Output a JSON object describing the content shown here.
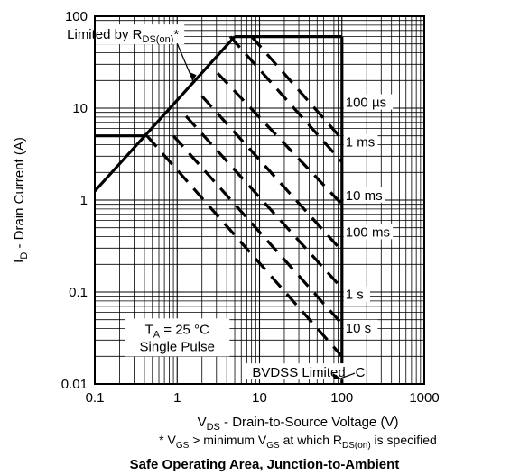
{
  "caption": "Safe Operating Area, Junction-to-Ambient",
  "footnote": {
    "pre": "* V",
    "sub1": "GS",
    "mid": " > minimum V",
    "sub2": "GS",
    "mid2": " at which R",
    "sub3": "DS(on)",
    "post": " is specified"
  },
  "chart_data": {
    "type": "line",
    "title": "",
    "x_scale": "log",
    "y_scale": "log",
    "xlim": [
      0.1,
      1000
    ],
    "ylim": [
      0.01,
      100
    ],
    "grid": true,
    "xlabel": {
      "main": "V",
      "sub": "DS",
      "rest": " - Drain-to-Source Voltage (V)"
    },
    "ylabel": {
      "main": "I",
      "sub": "D",
      "rest": " - Drain Current (A)"
    },
    "x_ticks": [
      {
        "value": 0.1,
        "label": "0.1"
      },
      {
        "value": 1,
        "label": "1"
      },
      {
        "value": 10,
        "label": "10"
      },
      {
        "value": 100,
        "label": "100"
      },
      {
        "value": 1000,
        "label": "1000"
      }
    ],
    "y_ticks": [
      {
        "value": 0.01,
        "label": "0.01"
      },
      {
        "value": 0.1,
        "label": "0.1"
      },
      {
        "value": 1,
        "label": "1"
      },
      {
        "value": 10,
        "label": "10"
      },
      {
        "value": 100,
        "label": "100"
      }
    ],
    "boundary": {
      "rdson_limit": [
        [
          0.1,
          1.25
        ],
        [
          5,
          60
        ]
      ],
      "current_limit": [
        [
          5,
          60
        ],
        [
          100,
          60
        ]
      ],
      "bvdss_limit": [
        [
          100,
          60
        ],
        [
          100,
          0.01
        ]
      ]
    },
    "series": [
      {
        "name": "100 µs",
        "points": [
          [
            8,
            60
          ],
          [
            100,
            4.6
          ]
        ],
        "label_at": [
          100,
          10.8
        ]
      },
      {
        "name": "1 ms",
        "points": [
          [
            4.4,
            60
          ],
          [
            100,
            2.6
          ]
        ],
        "label_at": [
          100,
          4.0
        ]
      },
      {
        "name": "10 ms",
        "points": [
          [
            3.1,
            24
          ],
          [
            100,
            0.9
          ]
        ],
        "label_at": [
          100,
          1.05
        ]
      },
      {
        "name": "100 ms",
        "points": [
          [
            2.0,
            13.5
          ],
          [
            100,
            0.28
          ]
        ],
        "label_at": [
          100,
          0.42
        ]
      },
      {
        "name": "1 s",
        "points": [
          [
            1.28,
            8.2
          ],
          [
            100,
            0.11
          ]
        ],
        "label_at": [
          100,
          0.088
        ]
      },
      {
        "name": "10 s",
        "points": [
          [
            0.9,
            5.0
          ],
          [
            100,
            0.045
          ]
        ],
        "label_at": [
          100,
          0.038
        ]
      },
      {
        "name": "DC",
        "points": [
          [
            0.43,
            5.0
          ],
          [
            100,
            0.02
          ]
        ],
        "label_at": [
          100,
          0.0125
        ]
      }
    ],
    "dc_plateau": [
      [
        0.1,
        5.0
      ],
      [
        0.43,
        5.0
      ]
    ],
    "annotations": {
      "rdson": {
        "pre": "Limited by R",
        "sub": "DS(on)",
        "post": "*",
        "at": [
          0.95,
          58
        ],
        "arrow_to": [
          1.55,
          20
        ]
      },
      "bvdss": {
        "text": "BVDSS Limited",
        "at": [
          30,
          0.0125
        ],
        "arrow_to": [
          97,
          0.0115
        ]
      },
      "ta": {
        "pre": "T",
        "sub": "A",
        "post": " = 25 °C",
        "line2": "Single Pulse",
        "at": [
          1.0,
          0.03
        ]
      }
    }
  }
}
